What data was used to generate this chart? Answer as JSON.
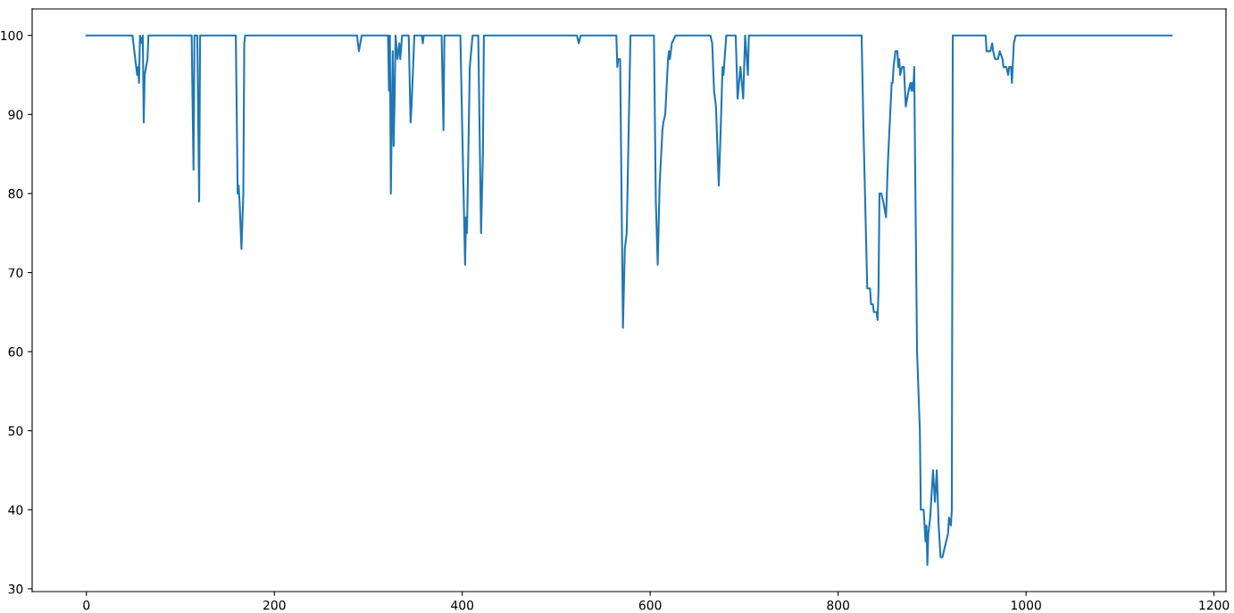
{
  "chart_data": {
    "type": "line",
    "xlim": [
      -57.75,
      1212.75
    ],
    "ylim": [
      29.65,
      103.35
    ],
    "xticks": [
      0,
      200,
      400,
      600,
      800,
      1000,
      1200
    ],
    "yticks": [
      30,
      40,
      50,
      60,
      70,
      80,
      90,
      100
    ],
    "grid": false,
    "legend": false,
    "series": [
      {
        "color": "#1f77b4",
        "x": [
          0,
          49,
          53,
          54,
          55,
          56,
          57,
          59,
          60,
          61,
          62,
          65,
          66,
          112,
          114,
          115,
          118,
          120,
          121,
          159,
          161,
          162,
          163,
          165,
          167,
          168,
          169,
          288,
          290,
          293,
          321,
          322,
          323,
          324,
          326,
          327,
          328,
          329,
          331,
          333,
          334,
          336,
          343,
          345,
          346,
          349,
          357,
          358,
          359,
          378,
          380,
          381,
          398,
          400,
          403,
          404,
          405,
          406,
          408,
          411,
          417,
          420,
          422,
          423,
          522,
          524,
          526,
          564,
          565,
          566,
          568,
          571,
          573,
          575,
          579,
          604,
          606,
          608,
          610,
          613,
          614,
          616,
          619,
          620,
          621,
          623,
          627,
          664,
          666,
          668,
          670,
          673,
          675,
          677,
          678,
          681,
          691,
          693,
          696,
          699,
          701,
          704,
          705,
          825,
          827,
          831,
          834,
          835,
          837,
          838,
          841,
          842,
          843,
          844,
          846,
          848,
          851,
          853,
          857,
          858,
          859,
          861,
          863,
          864,
          865,
          866,
          868,
          870,
          872,
          875,
          877,
          878,
          879,
          880,
          881,
          882,
          884,
          887,
          888,
          891,
          893,
          894,
          895,
          896,
          898,
          901,
          903,
          905,
          907,
          909,
          911,
          913,
          915,
          917,
          918,
          920,
          921,
          922,
          957,
          958,
          962,
          964,
          965,
          967,
          970,
          972,
          975,
          976,
          979,
          981,
          982,
          984,
          985,
          987,
          989,
          1155
        ],
        "values": [
          100,
          100,
          96,
          95,
          96,
          94,
          100,
          99,
          100,
          89,
          95,
          97,
          100,
          100,
          83,
          100,
          100,
          79,
          100,
          100,
          80,
          81,
          79,
          73,
          80,
          99,
          100,
          100,
          98,
          100,
          100,
          93,
          100,
          80,
          98,
          86,
          92,
          100,
          97,
          99,
          97,
          100,
          100,
          89,
          91,
          100,
          100,
          99,
          100,
          100,
          88,
          100,
          100,
          88,
          71,
          77,
          75,
          82,
          96,
          100,
          100,
          75,
          85,
          100,
          100,
          99,
          100,
          100,
          96,
          97,
          97,
          63,
          73,
          75,
          100,
          100,
          79,
          71,
          81,
          88,
          89,
          90,
          97,
          98,
          97,
          99,
          100,
          100,
          99,
          93,
          91,
          81,
          88,
          96,
          95,
          100,
          100,
          92,
          96,
          92,
          100,
          95,
          100,
          100,
          88,
          68,
          68,
          66,
          66,
          65,
          65,
          64,
          68,
          80,
          80,
          79,
          77,
          84,
          94,
          94,
          96,
          98,
          98,
          96,
          97,
          95,
          96,
          96,
          91,
          93,
          94,
          93,
          94,
          93,
          96,
          83,
          60,
          50,
          40,
          40,
          36,
          38,
          33,
          37,
          39,
          45,
          41,
          45,
          38,
          34,
          34,
          35,
          36,
          37,
          39,
          38,
          40,
          100,
          100,
          98,
          98,
          99,
          98,
          97,
          97,
          98,
          97,
          96,
          96,
          95,
          96,
          96,
          94,
          99,
          100,
          100
        ]
      }
    ]
  }
}
